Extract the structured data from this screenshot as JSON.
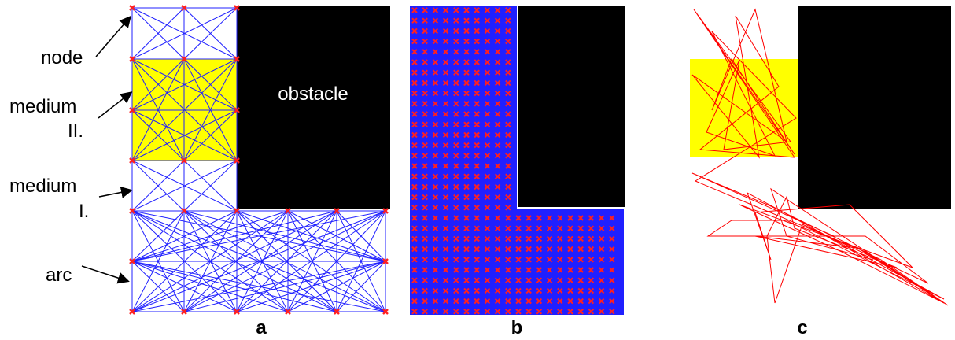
{
  "colors": {
    "medium_ii": "#ffff00",
    "obstacle": "#000000",
    "arc": "#2020ff",
    "node": "#ff2020",
    "path": "#ff0000"
  },
  "panel_a": {
    "annotations": {
      "node": "node",
      "medium_ii_l1": "medium",
      "medium_ii_l2": "II.",
      "medium_i_l1": "medium",
      "medium_i_l2": "I.",
      "arc": "arc",
      "obstacle": "obstacle"
    },
    "caption": "a"
  },
  "panel_b": {
    "caption": "b"
  },
  "panel_c": {
    "caption": "c"
  }
}
